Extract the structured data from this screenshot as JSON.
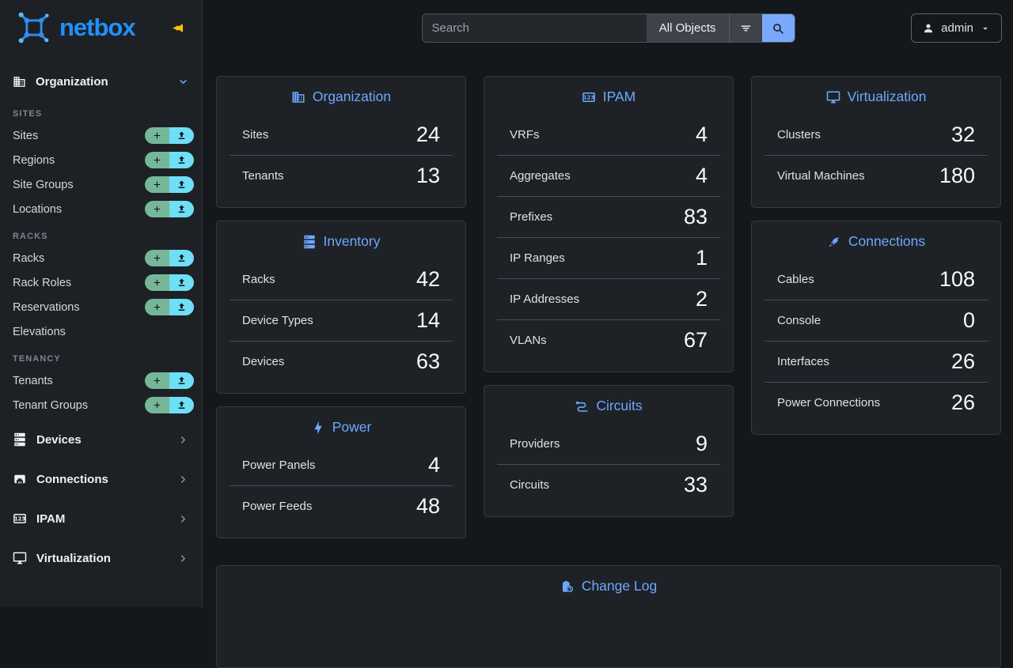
{
  "brand": {
    "name": "netbox"
  },
  "header": {
    "search_placeholder": "Search",
    "scope_label": "All Objects",
    "user_label": "admin"
  },
  "sidebar": {
    "expanded_groups": [
      {
        "label": "Organization",
        "icon": "organization-icon",
        "sections": [
          {
            "label": "SITES",
            "items": [
              {
                "label": "Sites",
                "can_add": true,
                "can_import": true
              },
              {
                "label": "Regions",
                "can_add": true,
                "can_import": true
              },
              {
                "label": "Site Groups",
                "can_add": true,
                "can_import": true
              },
              {
                "label": "Locations",
                "can_add": true,
                "can_import": true
              }
            ]
          },
          {
            "label": "RACKS",
            "items": [
              {
                "label": "Racks",
                "can_add": true,
                "can_import": true
              },
              {
                "label": "Rack Roles",
                "can_add": true,
                "can_import": true
              },
              {
                "label": "Reservations",
                "can_add": true,
                "can_import": true
              },
              {
                "label": "Elevations",
                "can_add": false,
                "can_import": false
              }
            ]
          },
          {
            "label": "TENANCY",
            "items": [
              {
                "label": "Tenants",
                "can_add": true,
                "can_import": true
              },
              {
                "label": "Tenant Groups",
                "can_add": true,
                "can_import": true
              }
            ]
          }
        ]
      }
    ],
    "collapsed_groups": [
      {
        "label": "Devices",
        "icon": "server-icon"
      },
      {
        "label": "Connections",
        "icon": "ethernet-port-icon"
      },
      {
        "label": "IPAM",
        "icon": "counter-icon"
      },
      {
        "label": "Virtualization",
        "icon": "monitor-icon"
      }
    ]
  },
  "dashboard": {
    "columns": [
      [
        {
          "title": "Organization",
          "icon": "organization-icon",
          "rows": [
            {
              "label": "Sites",
              "value": "24"
            },
            {
              "label": "Tenants",
              "value": "13"
            }
          ]
        },
        {
          "title": "Inventory",
          "icon": "server-icon",
          "rows": [
            {
              "label": "Racks",
              "value": "42"
            },
            {
              "label": "Device Types",
              "value": "14"
            },
            {
              "label": "Devices",
              "value": "63"
            }
          ]
        },
        {
          "title": "Power",
          "icon": "power-icon",
          "rows": [
            {
              "label": "Power Panels",
              "value": "4"
            },
            {
              "label": "Power Feeds",
              "value": "48"
            }
          ]
        }
      ],
      [
        {
          "title": "IPAM",
          "icon": "counter-icon",
          "rows": [
            {
              "label": "VRFs",
              "value": "4"
            },
            {
              "label": "Aggregates",
              "value": "4"
            },
            {
              "label": "Prefixes",
              "value": "83"
            },
            {
              "label": "IP Ranges",
              "value": "1"
            },
            {
              "label": "IP Addresses",
              "value": "2"
            },
            {
              "label": "VLANs",
              "value": "67"
            }
          ]
        },
        {
          "title": "Circuits",
          "icon": "circuits-icon",
          "rows": [
            {
              "label": "Providers",
              "value": "9"
            },
            {
              "label": "Circuits",
              "value": "33"
            }
          ]
        }
      ],
      [
        {
          "title": "Virtualization",
          "icon": "monitor-icon",
          "rows": [
            {
              "label": "Clusters",
              "value": "32"
            },
            {
              "label": "Virtual Machines",
              "value": "180"
            }
          ]
        },
        {
          "title": "Connections",
          "icon": "cable-icon",
          "rows": [
            {
              "label": "Cables",
              "value": "108"
            },
            {
              "label": "Console",
              "value": "0"
            },
            {
              "label": "Interfaces",
              "value": "26"
            },
            {
              "label": "Power Connections",
              "value": "26"
            }
          ]
        }
      ]
    ],
    "footer_card": {
      "title": "Change Log",
      "icon": "changelog-icon"
    }
  },
  "colors": {
    "brand_blue": "#2191fb",
    "accent_blue": "#6ea8fe",
    "add_green": "#75b798",
    "import_cyan": "#6edff6",
    "pin_amber": "#ffc107",
    "search_button_blue": "#79a9fe"
  }
}
